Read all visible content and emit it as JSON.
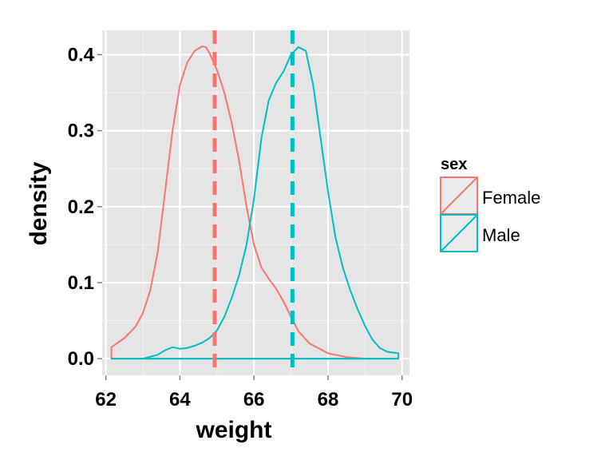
{
  "chart_data": {
    "type": "line",
    "xlabel": "weight",
    "ylabel": "density",
    "xlim": [
      61.9,
      70.2
    ],
    "ylim": [
      -0.022,
      0.432
    ],
    "x_ticks": [
      62,
      64,
      66,
      68,
      70
    ],
    "x_tick_labels": [
      "62",
      "64",
      "66",
      "68",
      "70"
    ],
    "y_ticks": [
      0.0,
      0.1,
      0.2,
      0.3,
      0.4
    ],
    "y_tick_labels": [
      "0.0",
      "0.1",
      "0.2",
      "0.3",
      "0.4"
    ],
    "grid": true,
    "legend": {
      "title": "sex",
      "position": "right"
    },
    "series": [
      {
        "name": "Female",
        "color": "#F8766D",
        "mean": 64.94,
        "x": [
          62.15,
          62.5,
          62.8,
          63.0,
          63.2,
          63.4,
          63.6,
          63.8,
          64.0,
          64.2,
          64.4,
          64.6,
          64.7,
          64.8,
          65.0,
          65.2,
          65.4,
          65.6,
          65.8,
          66.0,
          66.2,
          66.4,
          66.6,
          66.8,
          67.0,
          67.2,
          67.5,
          68.0,
          68.5,
          69.0,
          69.5,
          69.9
        ],
        "y": [
          0.015,
          0.027,
          0.042,
          0.06,
          0.09,
          0.14,
          0.22,
          0.3,
          0.36,
          0.39,
          0.405,
          0.411,
          0.41,
          0.402,
          0.38,
          0.35,
          0.31,
          0.26,
          0.2,
          0.15,
          0.12,
          0.105,
          0.092,
          0.075,
          0.055,
          0.036,
          0.02,
          0.007,
          0.002,
          0.0,
          0.0,
          0.0
        ]
      },
      {
        "name": "Male",
        "color": "#00BFC4",
        "mean": 67.04,
        "x": [
          62.15,
          63.0,
          63.4,
          63.6,
          63.8,
          64.0,
          64.2,
          64.4,
          64.6,
          64.8,
          65.0,
          65.2,
          65.4,
          65.6,
          65.8,
          66.0,
          66.2,
          66.4,
          66.6,
          66.8,
          67.0,
          67.2,
          67.4,
          67.6,
          67.8,
          68.0,
          68.2,
          68.4,
          68.6,
          68.8,
          69.0,
          69.2,
          69.4,
          69.6,
          69.9
        ],
        "y": [
          0.0,
          0.0,
          0.005,
          0.011,
          0.015,
          0.013,
          0.014,
          0.017,
          0.021,
          0.027,
          0.037,
          0.055,
          0.08,
          0.11,
          0.15,
          0.21,
          0.29,
          0.34,
          0.363,
          0.378,
          0.4,
          0.41,
          0.405,
          0.36,
          0.29,
          0.22,
          0.16,
          0.12,
          0.09,
          0.065,
          0.043,
          0.025,
          0.014,
          0.009,
          0.007
        ]
      }
    ]
  }
}
